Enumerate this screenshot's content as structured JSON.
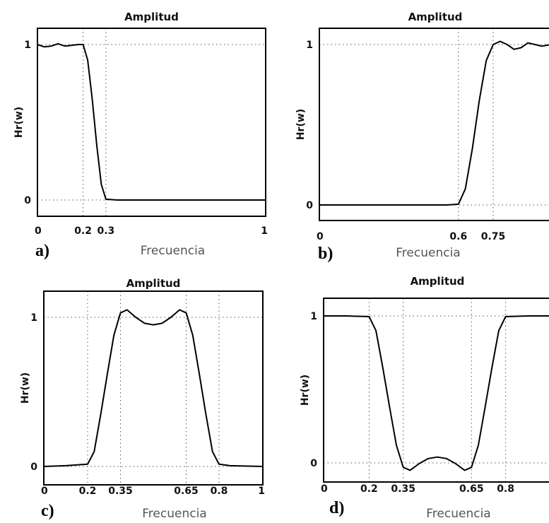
{
  "chart_data": [
    {
      "type": "line",
      "panel_label": "a)",
      "title": "Amplitud",
      "xlabel": "Frecuencia",
      "ylabel": "Hr(w)",
      "xlim": [
        0,
        1
      ],
      "ylim": [
        0,
        1
      ],
      "xticks": [
        "0",
        "0.2",
        "0.3",
        "1"
      ],
      "xtick_values": [
        0,
        0.2,
        0.3,
        1
      ],
      "yticks": [
        "0",
        "1"
      ],
      "grid": true,
      "series": [
        {
          "x": [
            0,
            0.03,
            0.06,
            0.09,
            0.12,
            0.15,
            0.18,
            0.2,
            0.22,
            0.24,
            0.26,
            0.28,
            0.3,
            0.35,
            0.5,
            0.7,
            0.9,
            1
          ],
          "y": [
            1,
            0.985,
            0.99,
            1.005,
            0.99,
            0.995,
            1.0,
            1.0,
            0.9,
            0.65,
            0.35,
            0.1,
            0.005,
            0,
            0,
            0,
            0,
            0
          ]
        }
      ]
    },
    {
      "type": "line",
      "panel_label": "b)",
      "title": "Amplitud",
      "xlabel": "Frecuencia",
      "ylabel": "Hr(w)",
      "xlim": [
        0,
        1
      ],
      "ylim": [
        0,
        1
      ],
      "xticks": [
        "0",
        "0.6",
        "0.75"
      ],
      "xtick_values": [
        0,
        0.6,
        0.75
      ],
      "yticks": [
        "0",
        "1"
      ],
      "grid": true,
      "series": [
        {
          "x": [
            0,
            0.2,
            0.4,
            0.55,
            0.6,
            0.63,
            0.66,
            0.69,
            0.72,
            0.75,
            0.78,
            0.81,
            0.84,
            0.87,
            0.9,
            0.93,
            0.96,
            1
          ],
          "y": [
            0,
            0,
            0,
            0,
            0.005,
            0.1,
            0.35,
            0.65,
            0.9,
            1.0,
            1.02,
            1.0,
            0.97,
            0.98,
            1.01,
            1.0,
            0.99,
            1.0
          ]
        }
      ]
    },
    {
      "type": "line",
      "panel_label": "c)",
      "title": "Amplitud",
      "xlabel": "Frecuencia",
      "ylabel": "Hr(w)",
      "xlim": [
        0,
        1
      ],
      "ylim": [
        0,
        1
      ],
      "xticks": [
        "0",
        "0.2",
        "0.35",
        "0.65",
        "0.8",
        "1"
      ],
      "xtick_values": [
        0,
        0.2,
        0.35,
        0.65,
        0.8,
        1
      ],
      "yticks": [
        "0",
        "1"
      ],
      "grid": true,
      "series": [
        {
          "x": [
            0,
            0.1,
            0.2,
            0.23,
            0.26,
            0.29,
            0.32,
            0.35,
            0.38,
            0.42,
            0.46,
            0.5,
            0.54,
            0.58,
            0.62,
            0.65,
            0.68,
            0.71,
            0.74,
            0.77,
            0.8,
            0.85,
            1
          ],
          "y": [
            0,
            0.005,
            0.015,
            0.1,
            0.35,
            0.62,
            0.88,
            1.03,
            1.05,
            1.0,
            0.96,
            0.95,
            0.96,
            1.0,
            1.05,
            1.03,
            0.88,
            0.62,
            0.35,
            0.1,
            0.015,
            0.005,
            0
          ]
        }
      ]
    },
    {
      "type": "line",
      "panel_label": "d)",
      "title": "Amplitud",
      "xlabel": "Frecuencia",
      "ylabel": "Hr(w)",
      "xlim": [
        0,
        1
      ],
      "ylim": [
        0,
        1
      ],
      "xticks": [
        "0",
        "0.2",
        "0.35",
        "0.65",
        "0.8"
      ],
      "xtick_values": [
        0,
        0.2,
        0.35,
        0.65,
        0.8
      ],
      "yticks": [
        "0",
        "1"
      ],
      "grid": true,
      "series": [
        {
          "x": [
            0,
            0.1,
            0.2,
            0.23,
            0.26,
            0.29,
            0.32,
            0.35,
            0.38,
            0.42,
            0.46,
            0.5,
            0.54,
            0.58,
            0.62,
            0.65,
            0.68,
            0.71,
            0.74,
            0.77,
            0.8,
            0.9,
            1
          ],
          "y": [
            1,
            1,
            0.995,
            0.9,
            0.65,
            0.38,
            0.12,
            -0.03,
            -0.05,
            -0.005,
            0.03,
            0.04,
            0.03,
            -0.005,
            -0.05,
            -0.03,
            0.12,
            0.38,
            0.65,
            0.9,
            0.995,
            1,
            1
          ]
        }
      ]
    }
  ]
}
